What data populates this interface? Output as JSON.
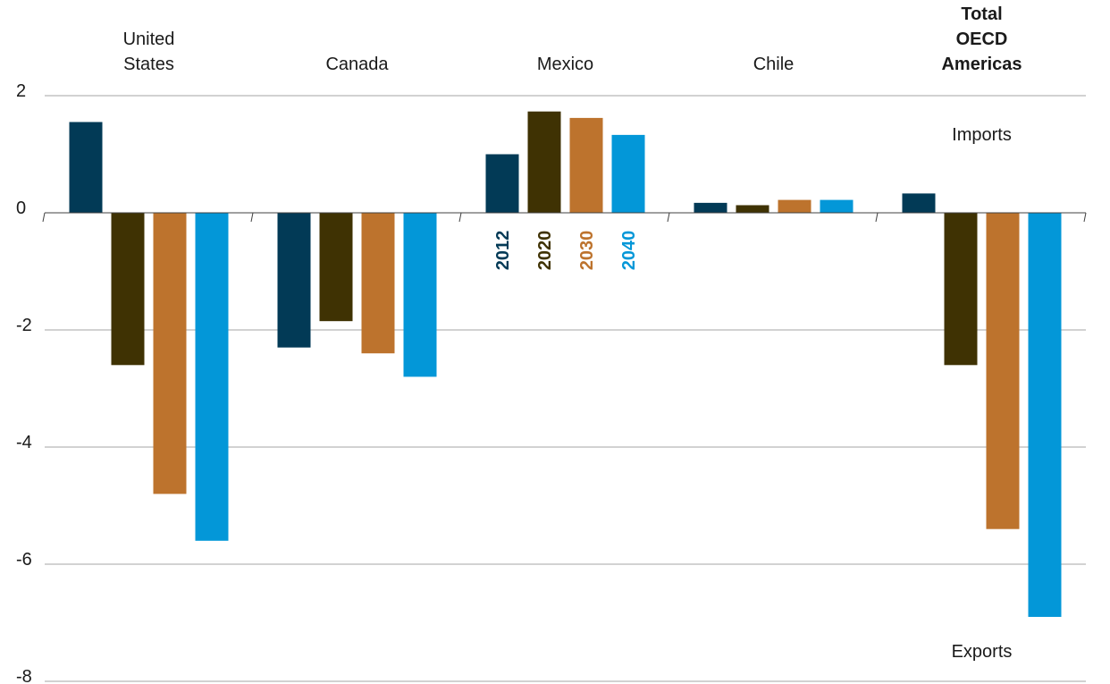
{
  "chart_data": {
    "type": "bar",
    "categories": [
      "United States",
      "Canada",
      "Mexico",
      "Chile",
      "Total OECD Americas"
    ],
    "category_label_lines": [
      [
        "United",
        "States"
      ],
      [
        "Canada"
      ],
      [
        "Mexico"
      ],
      [
        "Chile"
      ],
      [
        "Total",
        "OECD",
        "Americas"
      ]
    ],
    "bold_categories": [
      "Total OECD Americas"
    ],
    "series": [
      {
        "name": "2012",
        "color": "#023a56",
        "values": [
          1.55,
          -2.3,
          1.0,
          0.17,
          0.33
        ]
      },
      {
        "name": "2020",
        "color": "#3f3203",
        "values": [
          -2.6,
          -1.85,
          1.73,
          0.13,
          -2.6
        ]
      },
      {
        "name": "2030",
        "color": "#bd732d",
        "values": [
          -4.8,
          -2.4,
          1.62,
          0.22,
          -5.4
        ]
      },
      {
        "name": "2040",
        "color": "#0397d8",
        "values": [
          -5.6,
          -2.8,
          1.33,
          0.22,
          -6.9
        ]
      }
    ],
    "ylim": [
      -8,
      2
    ],
    "yticks": [
      2,
      0,
      -2,
      -4,
      -6,
      -8
    ],
    "grid": true,
    "legend": "inline-rotated",
    "annotations": [
      {
        "text": "Imports",
        "position": "upper-right"
      },
      {
        "text": "Exports",
        "position": "lower-right"
      }
    ],
    "title": "",
    "xlabel": "",
    "ylabel": ""
  }
}
